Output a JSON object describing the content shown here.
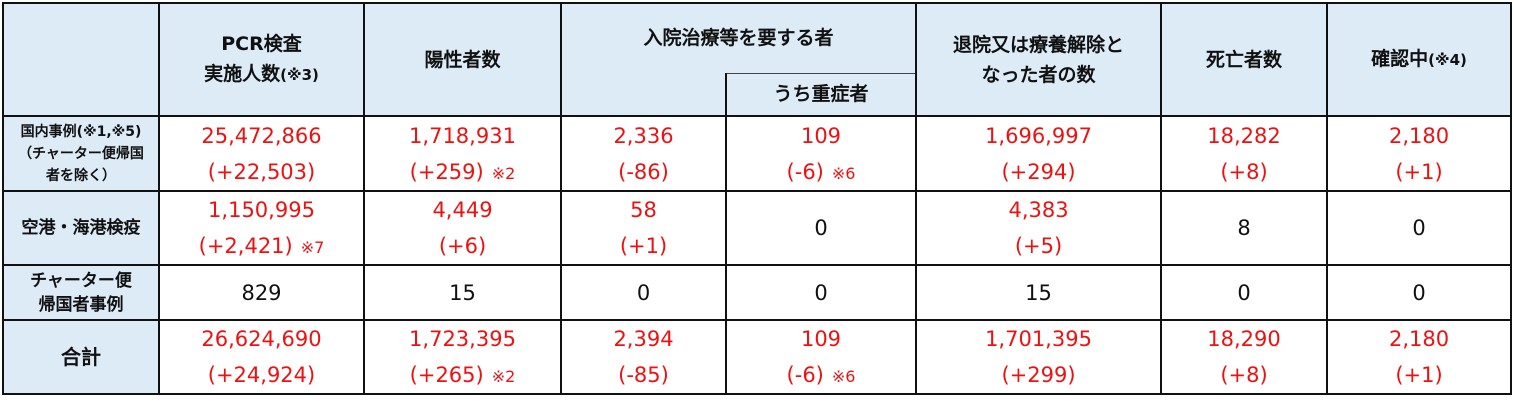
{
  "headers": {
    "pcr": "PCR検査",
    "pcr2": "実施人数",
    "pcr_note": "(※3)",
    "positive": "陽性者数",
    "hospital": "入院治療等を要する者",
    "severe": "うち重症者",
    "discharged": "退院又は療養解除と",
    "discharged2": "なった者の数",
    "deaths": "死亡者数",
    "confirming": "確認中",
    "confirming_note": "(※4)"
  },
  "rows": [
    {
      "label": [
        "国内事例(※1,※5)",
        "（チャーター便帰国",
        "者を除く）"
      ],
      "cells": [
        {
          "value": "25,472,866",
          "delta": "(+22,503)",
          "note": ""
        },
        {
          "value": "1,718,931",
          "delta": "(+259)",
          "note": "※2"
        },
        {
          "value": "2,336",
          "delta": "(-86)",
          "note": ""
        },
        {
          "value": "109",
          "delta": "(-6)",
          "note": "※6"
        },
        {
          "value": "1,696,997",
          "delta": "(+294)",
          "note": ""
        },
        {
          "value": "18,282",
          "delta": "(+8)",
          "note": ""
        },
        {
          "value": "2,180",
          "delta": "(+1)",
          "note": ""
        }
      ]
    },
    {
      "label": [
        "空港・海港検疫"
      ],
      "cells": [
        {
          "value": "1,150,995",
          "delta": "(+2,421)",
          "note": "※7"
        },
        {
          "value": "4,449",
          "delta": "(+6)",
          "note": ""
        },
        {
          "value": "58",
          "delta": "(+1)",
          "note": ""
        },
        {
          "value": "0"
        },
        {
          "value": "4,383",
          "delta": "(+5)",
          "note": ""
        },
        {
          "value": "8"
        },
        {
          "value": "0"
        }
      ]
    },
    {
      "label": [
        "チャーター便",
        "帰国者事例"
      ],
      "cells": [
        {
          "value": "829"
        },
        {
          "value": "15"
        },
        {
          "value": "0"
        },
        {
          "value": "0"
        },
        {
          "value": "15"
        },
        {
          "value": "0"
        },
        {
          "value": "0"
        }
      ]
    },
    {
      "label": [
        "合計"
      ],
      "cells": [
        {
          "value": "26,624,690",
          "delta": "(+24,924)",
          "note": ""
        },
        {
          "value": "1,723,395",
          "delta": "(+265)",
          "note": "※2"
        },
        {
          "value": "2,394",
          "delta": "(-85)",
          "note": ""
        },
        {
          "value": "109",
          "delta": "(-6)",
          "note": "※6"
        },
        {
          "value": "1,701,395",
          "delta": "(+299)",
          "note": ""
        },
        {
          "value": "18,290",
          "delta": "(+8)",
          "note": ""
        },
        {
          "value": "2,180",
          "delta": "(+1)",
          "note": ""
        }
      ]
    }
  ],
  "colors": {
    "header_bg": "#ddebf7",
    "changed_value": "#ee1111",
    "unchanged_value": "#111111"
  }
}
